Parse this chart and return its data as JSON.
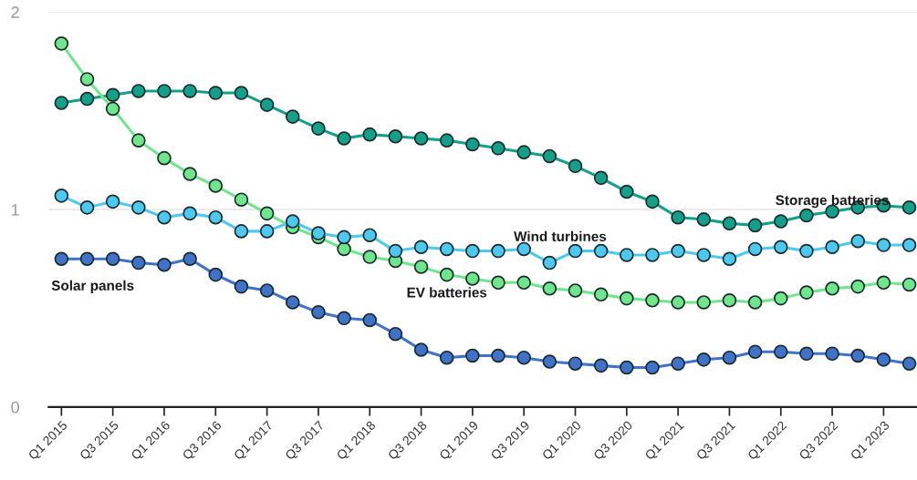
{
  "chart_data": {
    "type": "line",
    "categories": [
      "Q1 2015",
      null,
      "Q3 2015",
      null,
      "Q1 2016",
      null,
      "Q3 2016",
      null,
      "Q1 2017",
      null,
      "Q3 2017",
      null,
      "Q1 2018",
      null,
      "Q3 2018",
      null,
      "Q1 2019",
      null,
      "Q3 2019",
      null,
      "Q1 2020",
      null,
      "Q3 2020",
      null,
      "Q1 2021",
      null,
      "Q3 2021",
      null,
      "Q1 2022",
      null,
      "Q3 2022",
      null,
      "Q1 2023",
      null
    ],
    "series": [
      {
        "name": "Storage batteries",
        "color": "#12a08a",
        "values": [
          1.54,
          1.56,
          1.58,
          1.6,
          1.6,
          1.6,
          1.59,
          1.59,
          1.53,
          1.47,
          1.41,
          1.36,
          1.38,
          1.37,
          1.36,
          1.35,
          1.33,
          1.31,
          1.29,
          1.27,
          1.22,
          1.16,
          1.09,
          1.04,
          0.96,
          0.95,
          0.93,
          0.92,
          0.94,
          0.97,
          0.99,
          1.01,
          1.02,
          1.01
        ]
      },
      {
        "name": "EV batteries",
        "color": "#6ee68c",
        "values": [
          1.84,
          1.66,
          1.51,
          1.35,
          1.26,
          1.18,
          1.12,
          1.05,
          0.98,
          0.91,
          0.86,
          0.8,
          0.76,
          0.74,
          0.71,
          0.67,
          0.65,
          0.63,
          0.63,
          0.6,
          0.59,
          0.57,
          0.55,
          0.54,
          0.53,
          0.53,
          0.54,
          0.53,
          0.55,
          0.58,
          0.6,
          0.61,
          0.63,
          0.62
        ]
      },
      {
        "name": "Wind turbines",
        "color": "#4cc9f0",
        "values": [
          1.07,
          1.01,
          1.04,
          1.01,
          0.96,
          0.98,
          0.96,
          0.89,
          0.89,
          0.94,
          0.88,
          0.86,
          0.87,
          0.79,
          0.81,
          0.8,
          0.79,
          0.79,
          0.8,
          0.73,
          0.79,
          0.79,
          0.77,
          0.77,
          0.79,
          0.77,
          0.75,
          0.8,
          0.81,
          0.79,
          0.81,
          0.84,
          0.82,
          0.82
        ]
      },
      {
        "name": "Solar panels",
        "color": "#3f72c9",
        "values": [
          0.75,
          0.75,
          0.75,
          0.73,
          0.72,
          0.75,
          0.67,
          0.61,
          0.59,
          0.53,
          0.48,
          0.45,
          0.44,
          0.37,
          0.29,
          0.25,
          0.26,
          0.26,
          0.25,
          0.23,
          0.22,
          0.21,
          0.2,
          0.2,
          0.22,
          0.24,
          0.25,
          0.28,
          0.28,
          0.27,
          0.27,
          0.26,
          0.24,
          0.22
        ]
      }
    ],
    "ylim": [
      0,
      2
    ],
    "yticks": [
      0,
      1,
      2
    ],
    "grid": "y",
    "marker": "circle",
    "line_style": "solid",
    "legend": false
  }
}
